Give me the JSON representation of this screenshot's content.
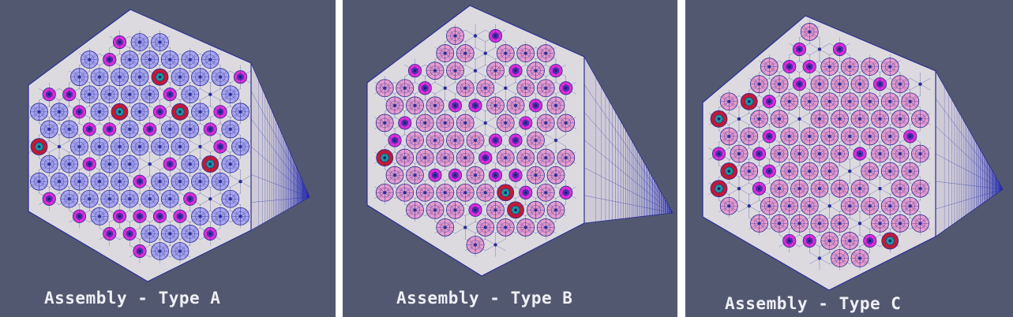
{
  "colors": {
    "background": "#525870",
    "mesh_face": "#dcdadf",
    "mesh_line": "#2a2f95",
    "side_dark": "#1c22a6",
    "type_a_pin": "#a9a6ee",
    "type_b_pin": "#e79ccc",
    "type_c_pin": "#e79ccc",
    "magenta_pin": "#e02cd7",
    "control_rod": "#c21a34",
    "teal_core": "#16a39a"
  },
  "panels": [
    {
      "id": "a",
      "caption": "Assembly - Type A",
      "pin_color": "#a9a6ee",
      "seed": 3
    },
    {
      "id": "b",
      "caption": "Assembly - Type B",
      "pin_color": "#e79ccc",
      "seed": 7
    },
    {
      "id": "c",
      "caption": "Assembly - Type C",
      "pin_color": "#e79ccc",
      "seed": 11
    }
  ]
}
